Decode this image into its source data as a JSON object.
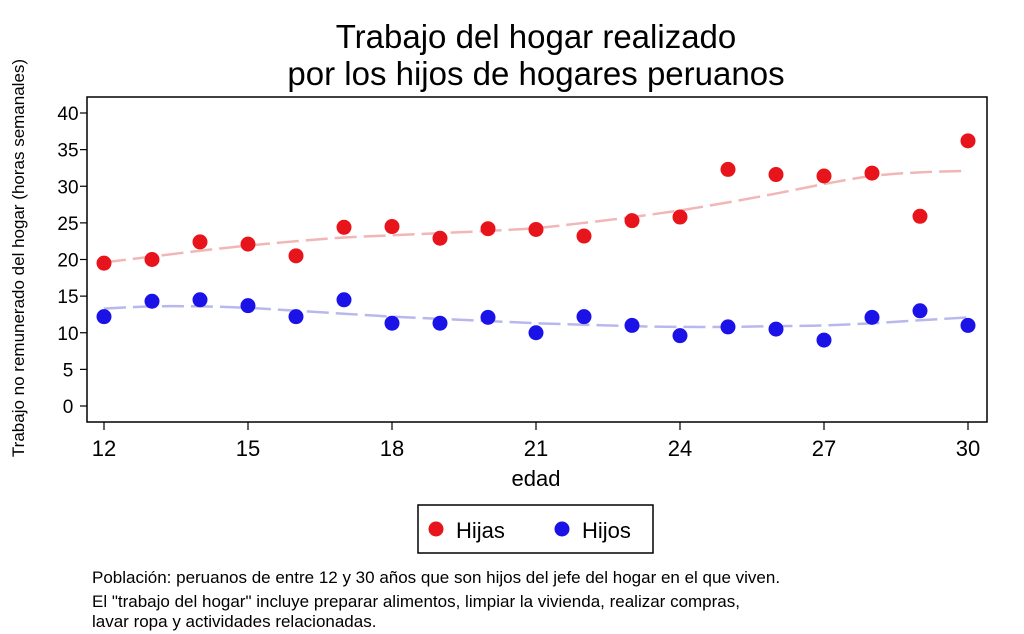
{
  "chart_data": {
    "type": "scatter",
    "title": [
      "Trabajo del hogar realizado",
      "por los hijos de hogares peruanos"
    ],
    "xlabel": "edad",
    "ylabel": "Trabajo no remunerado del hogar (horas semanales)",
    "xlim": [
      12,
      30
    ],
    "ylim": [
      0,
      40
    ],
    "xticks": [
      "12",
      "15",
      "18",
      "21",
      "24",
      "27",
      "30"
    ],
    "yticks": [
      "0",
      "5",
      "10",
      "15",
      "20",
      "25",
      "30",
      "35",
      "40"
    ],
    "grid": false,
    "legend_position": "bottom",
    "x": [
      12,
      13,
      14,
      15,
      16,
      17,
      18,
      19,
      20,
      21,
      22,
      23,
      24,
      25,
      26,
      27,
      28,
      29,
      30
    ],
    "series": [
      {
        "name": "Hijas",
        "color": "#e8141b",
        "values": [
          19.5,
          20.0,
          22.4,
          22.1,
          20.5,
          24.4,
          24.5,
          22.9,
          24.2,
          24.1,
          23.2,
          25.3,
          25.8,
          32.3,
          31.6,
          31.4,
          31.8,
          25.9,
          36.2
        ],
        "trend": [
          19.6,
          20.4,
          21.2,
          21.9,
          22.5,
          23.0,
          23.3,
          23.6,
          23.9,
          24.3,
          25.0,
          25.8,
          26.7,
          27.8,
          29.0,
          30.3,
          31.4,
          31.9,
          32.1
        ],
        "trend_color": "#f2b6b6"
      },
      {
        "name": "Hijos",
        "color": "#1a12e6",
        "values": [
          12.2,
          14.3,
          14.5,
          13.7,
          12.2,
          14.5,
          11.3,
          11.3,
          12.1,
          10.0,
          12.2,
          11.0,
          9.6,
          10.8,
          10.5,
          9.0,
          12.1,
          13.0,
          11.0
        ],
        "trend": [
          13.3,
          13.6,
          13.6,
          13.4,
          13.0,
          12.6,
          12.2,
          11.9,
          11.6,
          11.3,
          11.1,
          10.9,
          10.8,
          10.8,
          10.9,
          11.0,
          11.3,
          11.7,
          12.1
        ],
        "trend_color": "#b8b8ee"
      }
    ]
  },
  "notes": [
    "Población: peruanos de entre 12 y 30 años que son hijos del jefe del hogar en el que viven.",
    "El \"trabajo del hogar\" incluye preparar alimentos, limpiar la vivienda, realizar compras,",
    "lavar ropa y actividades relacionadas."
  ]
}
